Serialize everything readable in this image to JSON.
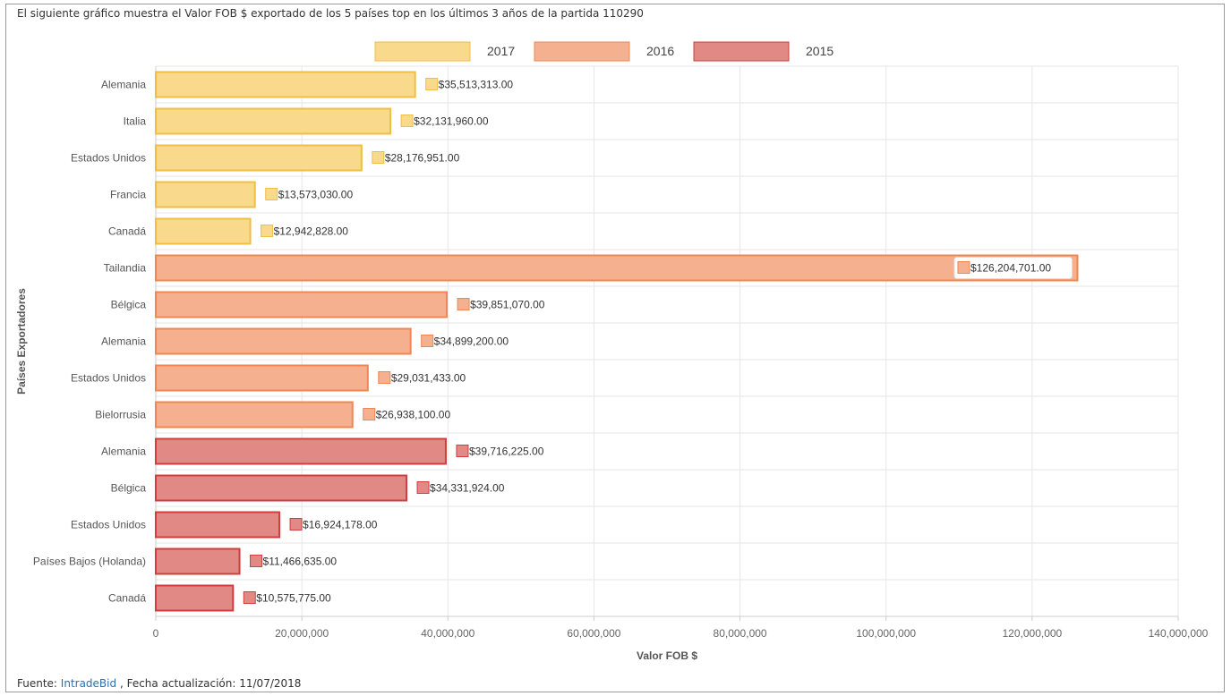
{
  "caption": "El siguiente gráfico muestra el Valor FOB $ exportado de los 5 países top en los últimos 3 años de la partida 110290",
  "footer": {
    "prefix": "Fuente: ",
    "link_text": "IntradeBid",
    "suffix": " , Fecha actualización: 11/07/2018"
  },
  "colors": {
    "2017": {
      "fill": "#f9d98c",
      "stroke": "#f0bd45"
    },
    "2016": {
      "fill": "#f5b08f",
      "stroke": "#ee8752"
    },
    "2015": {
      "fill": "#e08985",
      "stroke": "#cf3f3f"
    },
    "grid": "#e6e6e6"
  },
  "chart_data": {
    "type": "bar",
    "orientation": "horizontal",
    "title": "",
    "xlabel": "Valor FOB $",
    "ylabel": "Países Exportadores",
    "xlim": [
      0,
      140000000
    ],
    "xticks": [
      0,
      20000000,
      40000000,
      60000000,
      80000000,
      100000000,
      120000000,
      140000000
    ],
    "xtick_labels": [
      "0",
      "20,000,000",
      "40,000,000",
      "60,000,000",
      "80,000,000",
      "100,000,000",
      "120,000,000",
      "140,000,000"
    ],
    "grid": true,
    "legend_position": "top-center",
    "legend": [
      "2017",
      "2016",
      "2015"
    ],
    "bars": [
      {
        "category": "Alemania",
        "series": "2017",
        "value": 35513313.0,
        "label": "$35,513,313.00"
      },
      {
        "category": "Italia",
        "series": "2017",
        "value": 32131960.0,
        "label": "$32,131,960.00"
      },
      {
        "category": "Estados Unidos",
        "series": "2017",
        "value": 28176951.0,
        "label": "$28,176,951.00"
      },
      {
        "category": "Francia",
        "series": "2017",
        "value": 13573030.0,
        "label": "$13,573,030.00"
      },
      {
        "category": "Canadá",
        "series": "2017",
        "value": 12942828.0,
        "label": "$12,942,828.00"
      },
      {
        "category": "Tailandia",
        "series": "2016",
        "value": 126204701.0,
        "label": "$126,204,701.00"
      },
      {
        "category": "Bélgica",
        "series": "2016",
        "value": 39851070.0,
        "label": "$39,851,070.00"
      },
      {
        "category": "Alemania",
        "series": "2016",
        "value": 34899200.0,
        "label": "$34,899,200.00"
      },
      {
        "category": "Estados Unidos",
        "series": "2016",
        "value": 29031433.0,
        "label": "$29,031,433.00"
      },
      {
        "category": "Bielorrusia",
        "series": "2016",
        "value": 26938100.0,
        "label": "$26,938,100.00"
      },
      {
        "category": "Alemania",
        "series": "2015",
        "value": 39716225.0,
        "label": "$39,716,225.00"
      },
      {
        "category": "Bélgica",
        "series": "2015",
        "value": 34331924.0,
        "label": "$34,331,924.00"
      },
      {
        "category": "Estados Unidos",
        "series": "2015",
        "value": 16924178.0,
        "label": "$16,924,178.00"
      },
      {
        "category": "Países Bajos (Holanda)",
        "series": "2015",
        "value": 11466635.0,
        "label": "$11,466,635.00"
      },
      {
        "category": "Canadá",
        "series": "2015",
        "value": 10575775.0,
        "label": "$10,575,775.00"
      }
    ]
  }
}
